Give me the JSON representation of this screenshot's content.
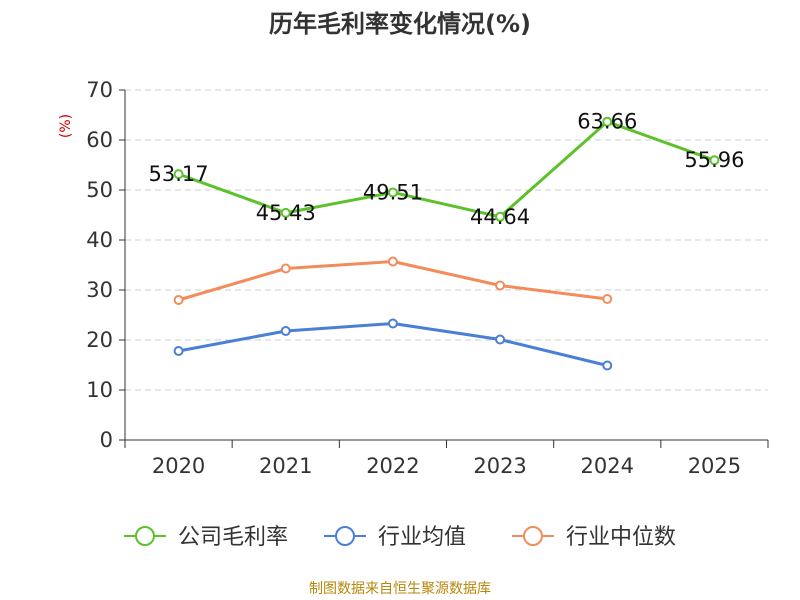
{
  "chart_data": {
    "type": "line",
    "title": "历年毛利率变化情况(%)",
    "ylabel": "(%)",
    "xlabel": "",
    "categories": [
      "2020",
      "2021",
      "2022",
      "2023",
      "2024",
      "2025"
    ],
    "ylim": [
      0,
      70
    ],
    "yticks": [
      0,
      10,
      20,
      30,
      40,
      50,
      60,
      70
    ],
    "grid": true,
    "legend_position": "bottom",
    "series": [
      {
        "name": "公司毛利率",
        "color": "#5cc12a",
        "values": [
          53.17,
          45.43,
          49.51,
          44.64,
          63.66,
          55.96
        ],
        "labels": [
          "53.17",
          "45.43",
          "49.51",
          "44.64",
          "63.66",
          "55.96"
        ]
      },
      {
        "name": "行业均值",
        "color": "#4a7fd6",
        "values": [
          17.8,
          21.8,
          23.3,
          20.1,
          14.9,
          null
        ]
      },
      {
        "name": "行业中位数",
        "color": "#f28c5a",
        "values": [
          28.0,
          34.3,
          35.7,
          30.9,
          28.2,
          null
        ]
      }
    ]
  },
  "source_text": "制图数据来自恒生聚源数据库"
}
